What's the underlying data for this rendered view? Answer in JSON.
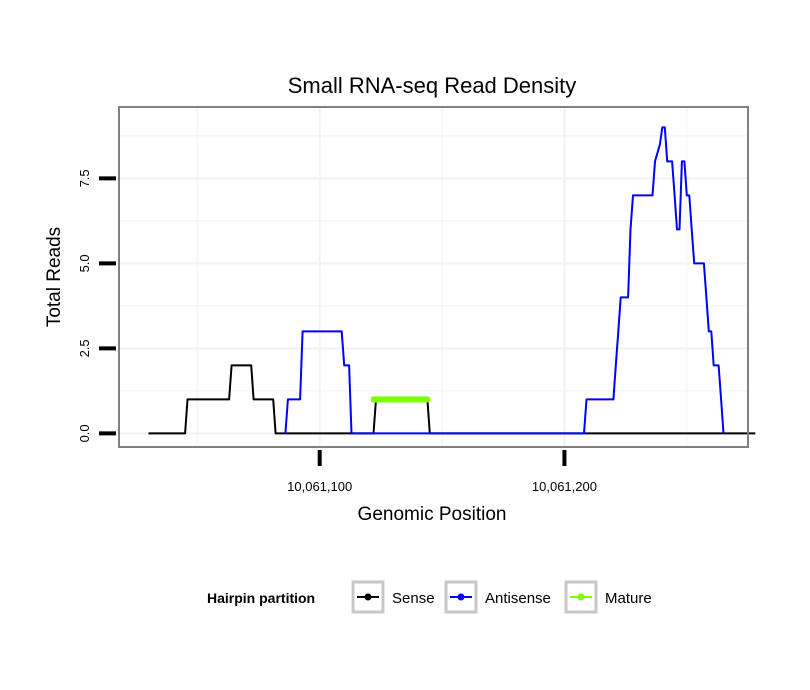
{
  "chart_data": {
    "type": "line",
    "title": "Small RNA-seq Read Density",
    "xlabel": "Genomic Position",
    "ylabel": "Total Reads",
    "xlim": [
      10061018,
      10061275
    ],
    "ylim": [
      -0.4,
      9.6
    ],
    "x_ticks": [
      {
        "value": 10061100,
        "label": "10,061,100"
      },
      {
        "value": 10061200,
        "label": "10,061,200"
      }
    ],
    "y_ticks": [
      {
        "value": 0,
        "label": "0.0"
      },
      {
        "value": 2.5,
        "label": "2.5"
      },
      {
        "value": 5,
        "label": "5.0"
      },
      {
        "value": 7.5,
        "label": "7.5"
      }
    ],
    "grid": true,
    "legend": {
      "title": "Hairpin partition",
      "position": "bottom",
      "entries": [
        {
          "name": "Sense",
          "color": "#000000"
        },
        {
          "name": "Antisense",
          "color": "#0000ff"
        },
        {
          "name": "Mature",
          "color": "#7fff00"
        }
      ]
    },
    "series": [
      {
        "name": "Sense",
        "color": "#000000",
        "points": [
          [
            10061030,
            0
          ],
          [
            10061045,
            0
          ],
          [
            10061046,
            1
          ],
          [
            10061063,
            1
          ],
          [
            10061064,
            2
          ],
          [
            10061072,
            2
          ],
          [
            10061073,
            1
          ],
          [
            10061081,
            1
          ],
          [
            10061082,
            0
          ],
          [
            10061122,
            0
          ],
          [
            10061123,
            1
          ],
          [
            10061144,
            1
          ],
          [
            10061145,
            0
          ],
          [
            10061278,
            0
          ]
        ]
      },
      {
        "name": "Antisense",
        "color": "#0000ff",
        "points": [
          [
            10061086,
            0
          ],
          [
            10061087,
            1
          ],
          [
            10061092,
            1
          ],
          [
            10061093,
            3
          ],
          [
            10061109,
            3
          ],
          [
            10061110,
            2
          ],
          [
            10061112,
            2
          ],
          [
            10061113,
            0
          ],
          [
            10061208,
            0
          ],
          [
            10061209,
            1
          ],
          [
            10061220,
            1
          ],
          [
            10061221,
            2
          ],
          [
            10061222,
            3
          ],
          [
            10061223,
            4
          ],
          [
            10061226,
            4
          ],
          [
            10061227,
            6
          ],
          [
            10061228,
            7
          ],
          [
            10061236,
            7
          ],
          [
            10061237,
            8
          ],
          [
            10061239,
            8.5
          ],
          [
            10061240,
            9
          ],
          [
            10061241,
            9
          ],
          [
            10061242,
            8
          ],
          [
            10061244,
            8
          ],
          [
            10061245,
            7
          ],
          [
            10061246,
            6
          ],
          [
            10061247,
            6
          ],
          [
            10061248,
            8
          ],
          [
            10061249,
            8
          ],
          [
            10061250,
            7
          ],
          [
            10061251,
            7
          ],
          [
            10061252,
            6
          ],
          [
            10061253,
            5
          ],
          [
            10061257,
            5
          ],
          [
            10061258,
            4
          ],
          [
            10061259,
            3
          ],
          [
            10061260,
            3
          ],
          [
            10061261,
            2
          ],
          [
            10061263,
            2
          ],
          [
            10061264,
            1
          ],
          [
            10061265,
            0
          ]
        ]
      },
      {
        "name": "Mature",
        "color": "#7fff00",
        "points": [
          [
            10061122,
            1
          ],
          [
            10061144,
            1
          ]
        ]
      }
    ]
  }
}
